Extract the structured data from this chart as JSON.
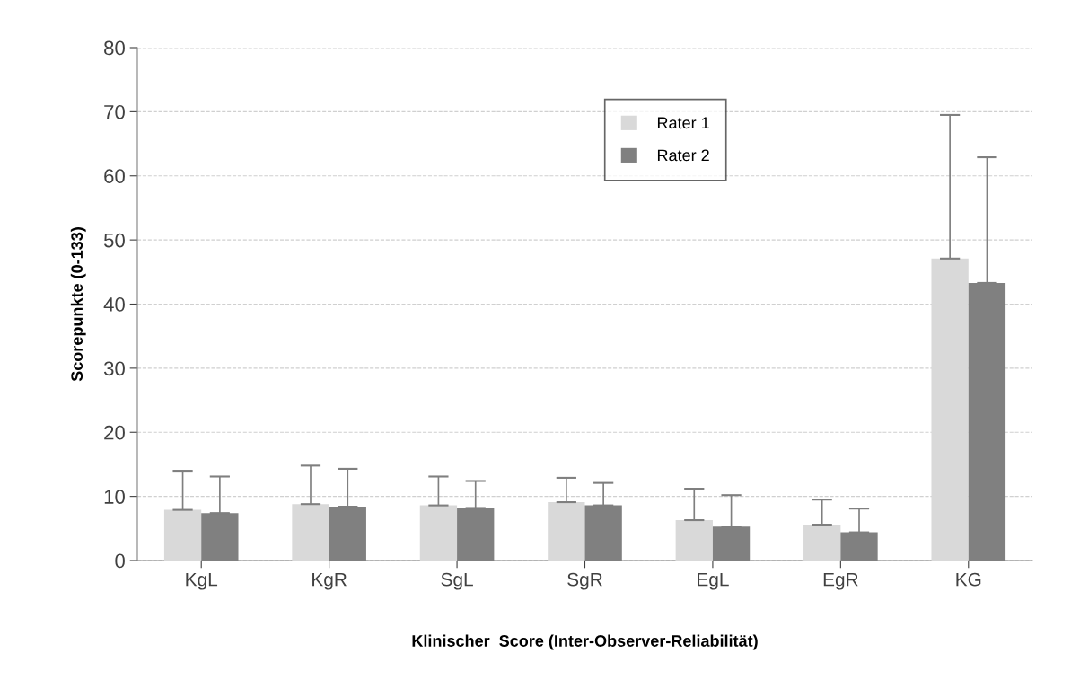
{
  "chart_data": {
    "type": "bar",
    "categories": [
      "KgL",
      "KgR",
      "SgL",
      "SgR",
      "EgL",
      "EgR",
      "KG"
    ],
    "series": [
      {
        "name": "Rater 1",
        "color": "#d9d9d9",
        "values": [
          7.9,
          8.8,
          8.6,
          9.1,
          6.3,
          5.6,
          47.1
        ],
        "errors": [
          [
            7.9,
            14.0
          ],
          [
            8.8,
            14.8
          ],
          [
            8.6,
            13.1
          ],
          [
            9.1,
            12.9
          ],
          [
            6.3,
            11.2
          ],
          [
            5.6,
            9.5
          ],
          [
            47.1,
            69.5
          ]
        ]
      },
      {
        "name": "Rater 2",
        "color": "#808080",
        "values": [
          7.4,
          8.4,
          8.2,
          8.6,
          5.3,
          4.4,
          43.3
        ],
        "errors": [
          [
            7.4,
            13.1
          ],
          [
            8.4,
            14.3
          ],
          [
            8.2,
            12.4
          ],
          [
            8.6,
            12.1
          ],
          [
            5.3,
            10.2
          ],
          [
            4.4,
            8.1
          ],
          [
            43.3,
            62.9
          ]
        ]
      }
    ],
    "xlabel": "Klinischer  Score (Inter-Observer-Reliabilität)",
    "ylabel": "Scorepunkte (0-133)",
    "ylim": [
      0,
      80
    ],
    "yticks": [
      0,
      10,
      20,
      30,
      40,
      50,
      60,
      70,
      80
    ],
    "grid": "y",
    "legend": "top center"
  }
}
